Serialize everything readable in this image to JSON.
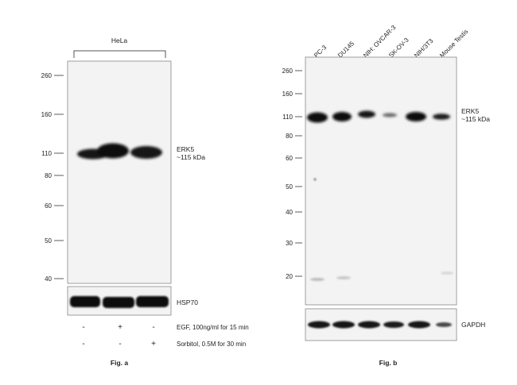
{
  "fig_a": {
    "group_label": "HeLa",
    "mw_markers": [
      "260",
      "160",
      "110",
      "80",
      "60",
      "50",
      "40"
    ],
    "band_label_line1": "ERK5",
    "band_label_line2": "~115 kDa",
    "loading_label": "HSP70",
    "treatments": [
      {
        "label": "EGF, 100ng/ml for 15 min",
        "signs": [
          "-",
          "+",
          "-"
        ]
      },
      {
        "label": "Sorbitol, 0.5M for 30 min",
        "signs": [
          "-",
          "-",
          "+"
        ]
      }
    ],
    "caption": "Fig. a"
  },
  "fig_b": {
    "lanes": [
      "PC-3",
      "DU145",
      "NIH: OVCAR-3",
      "SK-OV-3",
      "NIH/3T3",
      "Mouse Testis"
    ],
    "mw_markers": [
      "260",
      "160",
      "110",
      "80",
      "60",
      "50",
      "40",
      "30",
      "20"
    ],
    "band_label_line1": "ERK5",
    "band_label_line2": "~115 kDa",
    "loading_label": "GAPDH",
    "caption": "Fig. b"
  }
}
